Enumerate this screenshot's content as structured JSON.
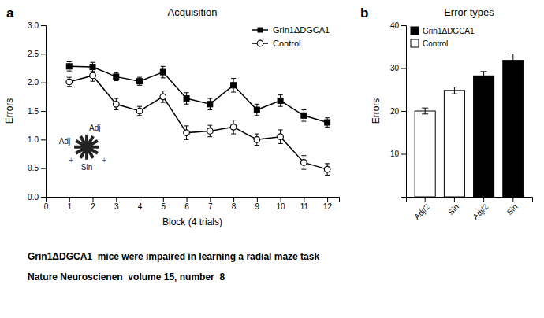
{
  "chart_data": [
    {
      "type": "line",
      "title": "Acquisition",
      "xlabel": "Block (4 trials)",
      "ylabel": "Errors",
      "x": [
        1,
        2,
        3,
        4,
        5,
        6,
        7,
        8,
        9,
        10,
        11,
        12
      ],
      "series": [
        {
          "name": "Grin1ΔDGCA1",
          "color": "black",
          "marker": "square",
          "values": [
            2.28,
            2.27,
            2.1,
            2.02,
            2.18,
            1.72,
            1.62,
            1.95,
            1.52,
            1.68,
            1.42,
            1.3
          ],
          "errors": [
            0.08,
            0.08,
            0.07,
            0.07,
            0.1,
            0.1,
            0.1,
            0.12,
            0.1,
            0.1,
            0.1,
            0.08
          ]
        },
        {
          "name": "Control",
          "color": "black",
          "marker": "circle-open",
          "values": [
            2.01,
            2.12,
            1.62,
            1.5,
            1.75,
            1.12,
            1.15,
            1.22,
            1.0,
            1.05,
            0.6,
            0.48
          ],
          "errors": [
            0.08,
            0.1,
            0.1,
            0.08,
            0.1,
            0.12,
            0.1,
            0.12,
            0.1,
            0.12,
            0.12,
            0.1
          ]
        }
      ],
      "xlim": [
        0,
        12.5
      ],
      "xticks": [
        0,
        1,
        2,
        3,
        4,
        5,
        6,
        7,
        8,
        9,
        10,
        11,
        12
      ],
      "ylim": [
        0,
        3.0
      ],
      "yticks": [
        {
          "value": 0,
          "label": "0.0"
        },
        0.5,
        {
          "value": 1.0,
          "label": "1.0"
        },
        1.5,
        {
          "value": 2.0,
          "label": "2.0"
        },
        2.5,
        {
          "value": 3.0,
          "label": "3.0"
        }
      ],
      "legend": "upper right",
      "annotations": [
        "a",
        "Adj",
        "Adj",
        "Sin",
        "+",
        "+"
      ]
    },
    {
      "type": "bar",
      "title": "Error types",
      "ylabel": "Errors",
      "categories": [
        "Adj/2",
        "Sin",
        "Adj/2",
        "Sin"
      ],
      "series": [
        {
          "name": "Grin1ΔDGCA1",
          "color": "black",
          "values": [
            null,
            null,
            28.2,
            31.8
          ],
          "errors": [
            null,
            null,
            1.0,
            1.5
          ]
        },
        {
          "name": "Control",
          "color": "white",
          "values": [
            20.0,
            24.8,
            null,
            null
          ],
          "errors": [
            0.7,
            0.8,
            null,
            null
          ]
        }
      ],
      "ylim": [
        0,
        40
      ],
      "yticks": [
        10,
        20,
        30,
        40
      ],
      "legend": "upper left",
      "annotations": [
        "b"
      ]
    }
  ],
  "annotations": [
    "Grin1ΔDGCA1  mice were impaired in learning a radial maze task",
    "Nature Neuroscienen  volume 15, number  8"
  ]
}
